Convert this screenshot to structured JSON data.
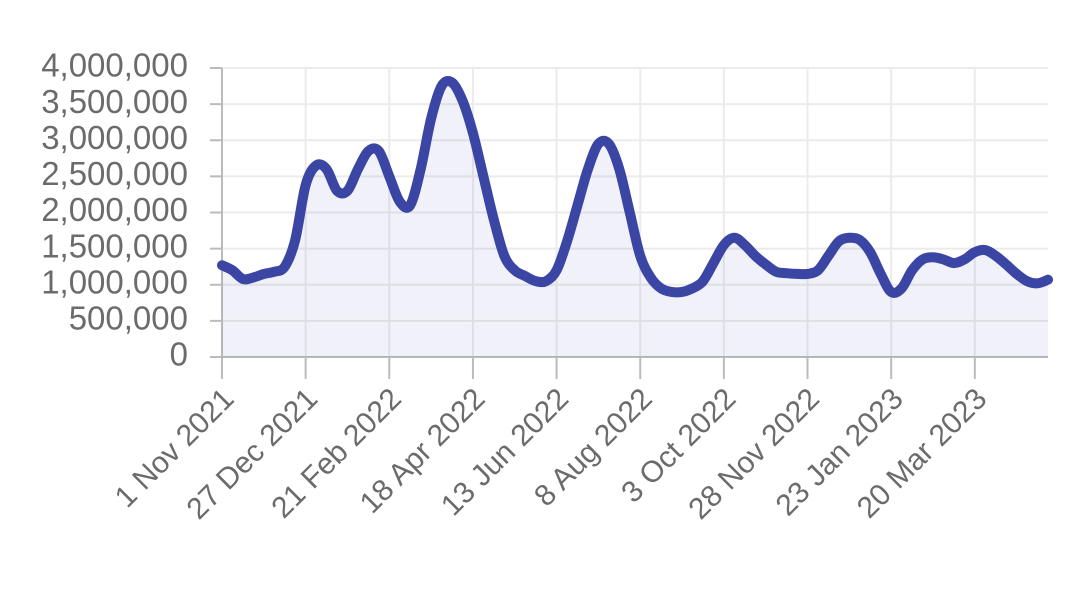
{
  "chart_data": {
    "type": "line",
    "categories": [
      "1 Nov 2021",
      null,
      null,
      null,
      null,
      null,
      null,
      null,
      "27 Dec 2021",
      null,
      null,
      null,
      null,
      null,
      null,
      null,
      "21 Feb 2022",
      null,
      null,
      null,
      null,
      null,
      null,
      null,
      "18 Apr 2022",
      null,
      null,
      null,
      null,
      null,
      null,
      null,
      "13 Jun 2022",
      null,
      null,
      null,
      null,
      null,
      null,
      null,
      "8 Aug 2022",
      null,
      null,
      null,
      null,
      null,
      null,
      null,
      "3 Oct 2022",
      null,
      null,
      null,
      null,
      null,
      null,
      null,
      "28 Nov 2022",
      null,
      null,
      null,
      null,
      null,
      null,
      null,
      "23 Jan 2023",
      null,
      null,
      null,
      null,
      null,
      null,
      null,
      "20 Mar 2023",
      null,
      null,
      null,
      null,
      null,
      null,
      null
    ],
    "series": [
      {
        "color": "#3b45a3",
        "values": [
          1270000,
          1200000,
          1080000,
          1100000,
          1150000,
          1180000,
          1250000,
          1620000,
          2380000,
          2650000,
          2600000,
          2300000,
          2300000,
          2600000,
          2850000,
          2850000,
          2500000,
          2150000,
          2100000,
          2600000,
          3300000,
          3750000,
          3800000,
          3550000,
          3100000,
          2500000,
          1900000,
          1400000,
          1200000,
          1120000,
          1050000,
          1050000,
          1200000,
          1600000,
          2100000,
          2600000,
          2950000,
          2950000,
          2600000,
          2000000,
          1400000,
          1100000,
          950000,
          900000,
          900000,
          950000,
          1050000,
          1300000,
          1550000,
          1650000,
          1550000,
          1400000,
          1280000,
          1180000,
          1160000,
          1150000,
          1150000,
          1200000,
          1400000,
          1600000,
          1650000,
          1620000,
          1450000,
          1150000,
          900000,
          950000,
          1200000,
          1350000,
          1380000,
          1350000,
          1300000,
          1350000,
          1450000,
          1480000,
          1400000,
          1280000,
          1150000,
          1050000,
          1020000,
          1070000
        ]
      }
    ],
    "ylim": [
      0,
      4000000
    ],
    "yticks": [
      0,
      {
        "value": 500000,
        "label": "500,000"
      },
      {
        "value": 1000000,
        "label": "1,000,000"
      },
      {
        "value": 1500000,
        "label": "1,500,000"
      },
      {
        "value": 2000000,
        "label": "2,000,000"
      },
      {
        "value": 2500000,
        "label": "2,500,000"
      },
      {
        "value": 3000000,
        "label": "3,000,000"
      },
      {
        "value": 3500000,
        "label": "3,500,000"
      },
      {
        "value": 4000000,
        "label": "4,000,000"
      }
    ],
    "grid": true,
    "area": true
  }
}
